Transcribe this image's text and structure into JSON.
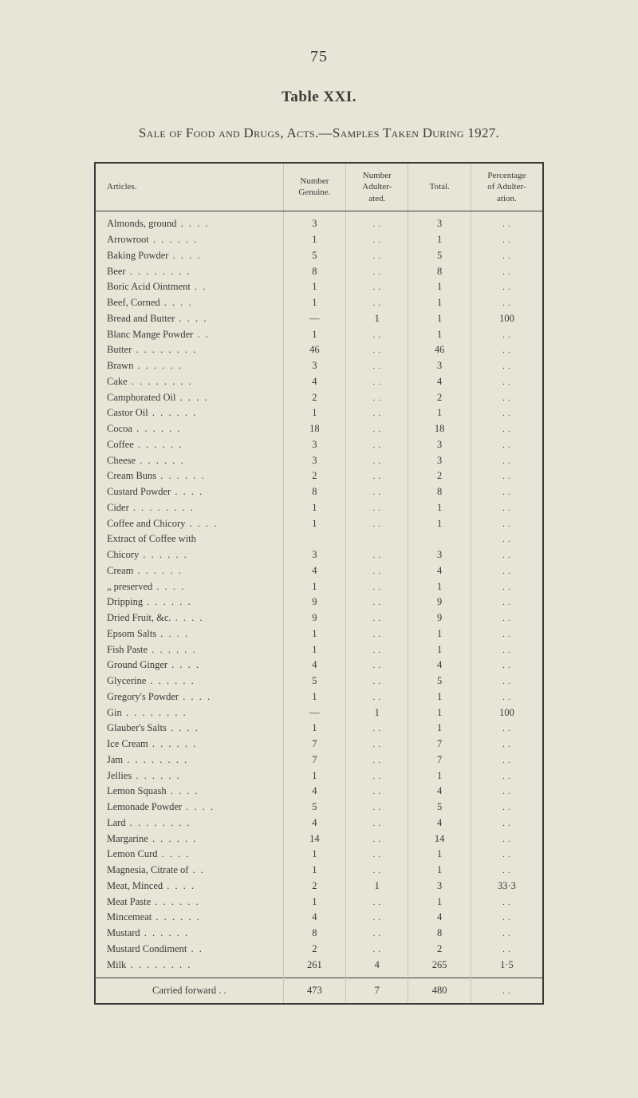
{
  "page_number": "75",
  "table_label": "Table XXI.",
  "subtitle": "Sale of Food and Drugs, Acts.—Samples Taken During 1927.",
  "headers": {
    "articles": "Articles.",
    "genuine": "Number\nGenuine.",
    "adulterated": "Number\nAdulter-\nated.",
    "total": "Total.",
    "percent": "Percentage\nof Adulter-\nation."
  },
  "rows": [
    {
      "a": "Almonds, ground",
      "d": ". .     . .",
      "g": "3",
      "ad": ". .",
      "t": "3",
      "p": ". ."
    },
    {
      "a": "Arrowroot",
      "d": ". .     . .     . .",
      "g": "1",
      "ad": ". .",
      "t": "1",
      "p": ". ."
    },
    {
      "a": "Baking Powder",
      "d": ". .     . .",
      "g": "5",
      "ad": ". .",
      "t": "5",
      "p": ". ."
    },
    {
      "a": "Beer",
      "d": ". .     . .     . .     . .",
      "g": "8",
      "ad": ". .",
      "t": "8",
      "p": ". ."
    },
    {
      "a": "Boric Acid Ointment",
      "d": ". .",
      "g": "1",
      "ad": ". .",
      "t": "1",
      "p": ". ."
    },
    {
      "a": "Beef, Corned",
      "d": ". .     . .",
      "g": "1",
      "ad": ". .",
      "t": "1",
      "p": ". ."
    },
    {
      "a": "Bread and Butter",
      "d": ". .     . .",
      "g": "—",
      "ad": "1",
      "t": "1",
      "p": "100"
    },
    {
      "a": "Blanc Mange Powder",
      "d": ". .",
      "g": "1",
      "ad": ". .",
      "t": "1",
      "p": ". ."
    },
    {
      "a": "Butter",
      "d": ". .     . .     . .     . .",
      "g": "46",
      "ad": ". .",
      "t": "46",
      "p": ". ."
    },
    {
      "a": "Brawn",
      "d": ". .     . .     . .",
      "g": "3",
      "ad": ". .",
      "t": "3",
      "p": ". ."
    },
    {
      "a": "Cake",
      "d": ". .     . .     . .     . .",
      "g": "4",
      "ad": ". .",
      "t": "4",
      "p": ". ."
    },
    {
      "a": "Camphorated Oil",
      "d": ". .     . .",
      "g": "2",
      "ad": ". .",
      "t": "2",
      "p": ". ."
    },
    {
      "a": "Castor Oil",
      "d": ". .     . .     . .",
      "g": "1",
      "ad": ". .",
      "t": "1",
      "p": ". ."
    },
    {
      "a": "Cocoa",
      "d": ". .     . .     . .",
      "g": "18",
      "ad": ". .",
      "t": "18",
      "p": ". ."
    },
    {
      "a": "Coffee",
      "d": ". .     . .     . .",
      "g": "3",
      "ad": ". .",
      "t": "3",
      "p": ". ."
    },
    {
      "a": "Cheese",
      "d": ". .     . .     . .",
      "g": "3",
      "ad": ". .",
      "t": "3",
      "p": ". ."
    },
    {
      "a": "Cream Buns",
      "d": ". .     . .     . .",
      "g": "2",
      "ad": ". .",
      "t": "2",
      "p": ". ."
    },
    {
      "a": "Custard Powder",
      "d": ". .     . .",
      "g": "8",
      "ad": ". .",
      "t": "8",
      "p": ". ."
    },
    {
      "a": "Cider",
      "d": ". .     . .     . .     . .",
      "g": "1",
      "ad": ". .",
      "t": "1",
      "p": ". ."
    },
    {
      "a": "Coffee and Chicory",
      "d": ". .     . .",
      "g": "1",
      "ad": ". .",
      "t": "1",
      "p": ". ."
    },
    {
      "a": "Extract  of   Coffee   with",
      "d": "",
      "g": "",
      "ad": "",
      "t": "",
      "p": ". ."
    },
    {
      "a": "   Chicory",
      "d": ". .     . .     . .",
      "g": "3",
      "ad": ". .",
      "t": "3",
      "p": ". ."
    },
    {
      "a": "Cream",
      "d": ". .     . .     . .",
      "g": "4",
      "ad": ". .",
      "t": "4",
      "p": ". ."
    },
    {
      "a": "   „     preserved",
      "d": ". .     . .",
      "g": "1",
      "ad": ". .",
      "t": "1",
      "p": ". ."
    },
    {
      "a": "Dripping",
      "d": ". .     . .     . .",
      "g": "9",
      "ad": ". .",
      "t": "9",
      "p": ". ."
    },
    {
      "a": "Dried Fruit, &c.",
      "d": ". .     . .",
      "g": "9",
      "ad": ". .",
      "t": "9",
      "p": ". ."
    },
    {
      "a": "Epsom Salts",
      "d": ". .     . .",
      "g": "1",
      "ad": ". .",
      "t": "1",
      "p": ". ."
    },
    {
      "a": "Fish Paste",
      "d": ". .     . .     . .",
      "g": "1",
      "ad": ". .",
      "t": "1",
      "p": ". ."
    },
    {
      "a": "Ground Ginger",
      "d": ". .     . .",
      "g": "4",
      "ad": ". .",
      "t": "4",
      "p": ". ."
    },
    {
      "a": "Glycerine",
      "d": ". .     . .     . .",
      "g": "5",
      "ad": ". .",
      "t": "5",
      "p": ". ."
    },
    {
      "a": "Gregory's Powder",
      "d": ". .     . .",
      "g": "1",
      "ad": ". .",
      "t": "1",
      "p": ". ."
    },
    {
      "a": "Gin",
      "d": ". .     . .     . .     . .",
      "g": "—",
      "ad": "1",
      "t": "1",
      "p": "100"
    },
    {
      "a": "Glauber's Salts",
      "d": ". .     . .",
      "g": "1",
      "ad": ". .",
      "t": "1",
      "p": ". ."
    },
    {
      "a": "Ice Cream",
      "d": ". .     . .     . .",
      "g": "7",
      "ad": ". .",
      "t": "7",
      "p": ". ."
    },
    {
      "a": "Jam",
      "d": ". .     . .     . .     . .",
      "g": "7",
      "ad": ". .",
      "t": "7",
      "p": ". ."
    },
    {
      "a": "Jellies",
      "d": ". .     . .     . .",
      "g": "1",
      "ad": ". .",
      "t": "1",
      "p": ". ."
    },
    {
      "a": "Lemon Squash",
      "d": ". .     . .",
      "g": "4",
      "ad": ". .",
      "t": "4",
      "p": ". ."
    },
    {
      "a": "Lemonade Powder",
      "d": ". .     . .",
      "g": "5",
      "ad": ". .",
      "t": "5",
      "p": ". ."
    },
    {
      "a": "Lard",
      "d": ". .     . .     . .     . .",
      "g": "4",
      "ad": ". .",
      "t": "4",
      "p": ". ."
    },
    {
      "a": "Margarine",
      "d": ". .     . .     . .",
      "g": "14",
      "ad": ". .",
      "t": "14",
      "p": ". ."
    },
    {
      "a": "Lemon Curd",
      "d": ". .     . .",
      "g": "1",
      "ad": ". .",
      "t": "1",
      "p": ". ."
    },
    {
      "a": "Magnesia, Citrate of",
      "d": ". .",
      "g": "1",
      "ad": ". .",
      "t": "1",
      "p": ". ."
    },
    {
      "a": "Meat, Minced",
      "d": ". .     . .",
      "g": "2",
      "ad": "1",
      "t": "3",
      "p": "33·3"
    },
    {
      "a": "Meat Paste",
      "d": ". .     . .     . .",
      "g": "1",
      "ad": ". .",
      "t": "1",
      "p": ". ."
    },
    {
      "a": "Mincemeat",
      "d": ". .     . .     . .",
      "g": "4",
      "ad": ". .",
      "t": "4",
      "p": ". ."
    },
    {
      "a": "Mustard",
      "d": ". .     . .     . .",
      "g": "8",
      "ad": ". .",
      "t": "8",
      "p": ". ."
    },
    {
      "a": "Mustard Condiment",
      "d": ". .",
      "g": "2",
      "ad": ". .",
      "t": "2",
      "p": ". ."
    },
    {
      "a": "Milk",
      "d": ". .     . .     . .     . .",
      "g": "261",
      "ad": "4",
      "t": "265",
      "p": "1·5"
    }
  ],
  "footer": {
    "label": "Carried forward     . .",
    "genuine": "473",
    "adulterated": "7",
    "total": "480",
    "percent": ". ."
  },
  "col_widths": {
    "articles": "42%",
    "genuine": "14%",
    "adulterated": "14%",
    "total": "14%",
    "percent": "16%"
  }
}
